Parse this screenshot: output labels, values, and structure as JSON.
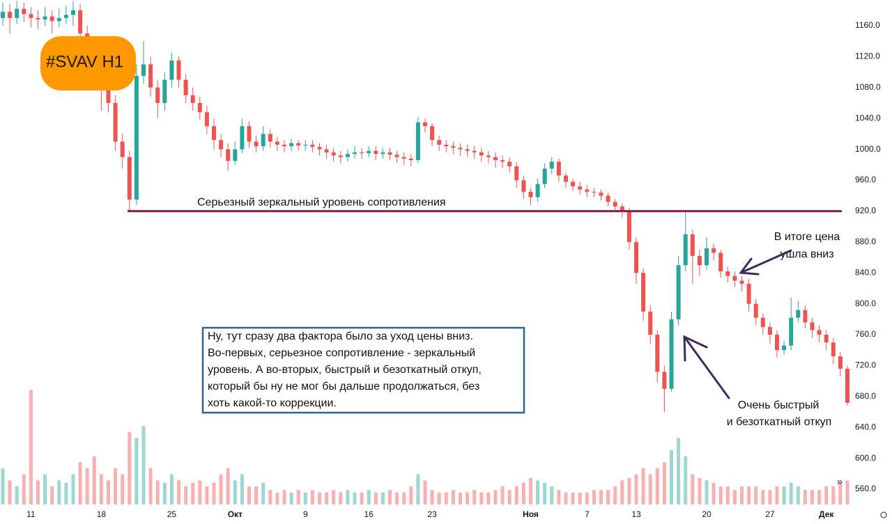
{
  "chart_data": {
    "type": "candlestick",
    "categories": [
      null,
      null,
      null,
      null,
      "11",
      null,
      null,
      null,
      null,
      null,
      null,
      null,
      null,
      null,
      "18",
      null,
      null,
      null,
      null,
      null,
      null,
      null,
      null,
      null,
      "25",
      null,
      null,
      null,
      null,
      null,
      null,
      null,
      null,
      "Окт",
      null,
      null,
      null,
      null,
      null,
      null,
      null,
      null,
      null,
      "9",
      null,
      null,
      null,
      null,
      null,
      null,
      null,
      null,
      "16",
      null,
      null,
      null,
      null,
      null,
      null,
      null,
      null,
      "23",
      null,
      null,
      null,
      null,
      null,
      null,
      null,
      null,
      null,
      null,
      null,
      null,
      null,
      "Ноя",
      null,
      null,
      null,
      null,
      null,
      null,
      null,
      "7",
      null,
      null,
      null,
      null,
      null,
      null,
      "13",
      null,
      null,
      null,
      null,
      null,
      null,
      null,
      null,
      null,
      "20",
      null,
      null,
      null,
      null,
      null,
      null,
      null,
      null,
      "27",
      null,
      null,
      null,
      null,
      null,
      null,
      null,
      "Дек",
      null,
      null,
      null
    ],
    "open": [
      1170,
      1178,
      1170,
      1182,
      1175,
      1170,
      1168,
      1172,
      1166,
      1170,
      1174,
      1180,
      1150,
      1120,
      1095,
      1080,
      1060,
      1010,
      990,
      935,
      1095,
      1110,
      1080,
      1060,
      1090,
      1115,
      1090,
      1070,
      1060,
      1048,
      1030,
      1012,
      1000,
      985,
      1000,
      1030,
      1010,
      1004,
      1020,
      1010,
      1006,
      1004,
      1008,
      1005,
      1006,
      1003,
      1000,
      996,
      992,
      990,
      994,
      996,
      995,
      998,
      994,
      996,
      993,
      990,
      988,
      986,
      1035,
      1030,
      1012,
      1006,
      1004,
      1002,
      1000,
      998,
      996,
      992,
      990,
      986,
      984,
      978,
      960,
      945,
      938,
      955,
      975,
      984,
      966,
      958,
      952,
      948,
      945,
      944,
      940,
      932,
      926,
      920,
      880,
      840,
      790,
      760,
      712,
      690,
      780,
      850,
      890,
      862,
      850,
      872,
      866,
      842,
      836,
      830,
      826,
      800,
      782,
      770,
      760,
      740,
      746,
      782,
      792,
      776,
      766,
      760,
      750,
      732,
      716
    ],
    "high": [
      1190,
      1188,
      1192,
      1190,
      1184,
      1180,
      1184,
      1180,
      1182,
      1186,
      1192,
      1188,
      1160,
      1130,
      1105,
      1090,
      1070,
      1020,
      998,
      1110,
      1140,
      1120,
      1090,
      1100,
      1125,
      1120,
      1098,
      1080,
      1068,
      1056,
      1040,
      1020,
      1008,
      1010,
      1040,
      1036,
      1018,
      1030,
      1026,
      1016,
      1012,
      1014,
      1012,
      1012,
      1012,
      1008,
      1006,
      1002,
      998,
      1000,
      1004,
      1002,
      1004,
      1004,
      1002,
      1002,
      998,
      996,
      994,
      1042,
      1040,
      1034,
      1018,
      1012,
      1010,
      1008,
      1006,
      1004,
      1002,
      998,
      996,
      992,
      990,
      984,
      966,
      950,
      962,
      982,
      990,
      988,
      970,
      962,
      958,
      954,
      950,
      948,
      944,
      936,
      930,
      924,
      886,
      846,
      798,
      766,
      720,
      790,
      862,
      920,
      896,
      870,
      886,
      878,
      870,
      848,
      842,
      836,
      832,
      806,
      788,
      776,
      766,
      752,
      808,
      804,
      798,
      782,
      772,
      766,
      756,
      738,
      720
    ],
    "low": [
      1160,
      1150,
      1162,
      1165,
      1158,
      1156,
      1160,
      1150,
      1158,
      1162,
      1160,
      1140,
      1108,
      1080,
      1050,
      1048,
      998,
      975,
      920,
      928,
      1085,
      1068,
      1040,
      1050,
      1080,
      1080,
      1060,
      1050,
      1038,
      1020,
      1000,
      990,
      972,
      980,
      995,
      1002,
      996,
      998,
      1002,
      998,
      996,
      998,
      998,
      998,
      996,
      992,
      988,
      984,
      982,
      984,
      988,
      988,
      990,
      986,
      988,
      986,
      982,
      980,
      978,
      982,
      1022,
      1004,
      998,
      996,
      994,
      992,
      990,
      988,
      984,
      982,
      976,
      976,
      970,
      950,
      936,
      928,
      932,
      950,
      968,
      958,
      950,
      946,
      942,
      938,
      938,
      934,
      926,
      920,
      912,
      870,
      826,
      778,
      748,
      698,
      660,
      686,
      772,
      842,
      826,
      836,
      844,
      856,
      834,
      828,
      822,
      816,
      790,
      772,
      760,
      748,
      730,
      734,
      740,
      776,
      768,
      756,
      750,
      740,
      722,
      706,
      668
    ],
    "close": [
      1178,
      1170,
      1182,
      1175,
      1170,
      1168,
      1172,
      1166,
      1170,
      1174,
      1180,
      1150,
      1120,
      1095,
      1080,
      1060,
      1010,
      990,
      935,
      1095,
      1110,
      1080,
      1060,
      1090,
      1115,
      1090,
      1070,
      1060,
      1048,
      1030,
      1012,
      1000,
      985,
      1000,
      1030,
      1010,
      1004,
      1020,
      1010,
      1006,
      1004,
      1008,
      1005,
      1006,
      1003,
      1000,
      996,
      992,
      990,
      994,
      996,
      995,
      998,
      994,
      996,
      993,
      990,
      988,
      986,
      1035,
      1030,
      1012,
      1006,
      1004,
      1002,
      1000,
      998,
      996,
      992,
      990,
      986,
      984,
      978,
      960,
      945,
      938,
      955,
      975,
      984,
      966,
      958,
      952,
      948,
      945,
      944,
      940,
      932,
      926,
      920,
      880,
      840,
      790,
      760,
      712,
      690,
      780,
      850,
      890,
      862,
      850,
      872,
      866,
      842,
      836,
      830,
      826,
      800,
      782,
      770,
      760,
      740,
      746,
      782,
      792,
      776,
      766,
      760,
      750,
      732,
      716,
      672
    ],
    "volume": [
      30,
      20,
      15,
      25,
      95,
      20,
      25,
      15,
      20,
      18,
      25,
      35,
      30,
      40,
      25,
      20,
      30,
      25,
      60,
      55,
      65,
      30,
      20,
      18,
      25,
      20,
      15,
      18,
      20,
      15,
      18,
      25,
      30,
      20,
      25,
      15,
      15,
      18,
      12,
      10,
      12,
      10,
      12,
      10,
      12,
      10,
      10,
      12,
      10,
      12,
      10,
      10,
      12,
      10,
      10,
      12,
      10,
      10,
      15,
      25,
      20,
      12,
      10,
      10,
      12,
      10,
      10,
      12,
      10,
      10,
      12,
      15,
      12,
      15,
      18,
      22,
      20,
      18,
      15,
      12,
      10,
      10,
      10,
      10,
      12,
      12,
      12,
      15,
      20,
      22,
      25,
      30,
      25,
      30,
      35,
      45,
      55,
      40,
      25,
      22,
      20,
      18,
      15,
      15,
      12,
      15,
      15,
      15,
      12,
      12,
      15,
      15,
      18,
      15,
      12,
      12,
      12,
      15,
      15,
      18,
      20
    ],
    "colors": {
      "up": "#26a69a",
      "down": "#ef5350"
    },
    "ylim": [
      535.7,
      1193.3
    ],
    "yticks": [
      {
        "value": 1160,
        "label": "1160.0"
      },
      {
        "value": 1120,
        "label": "1120.0"
      },
      {
        "value": 1080,
        "label": "1080.0"
      },
      {
        "value": 1040,
        "label": "1040.0"
      },
      {
        "value": 1000,
        "label": "1000.0"
      },
      {
        "value": 960,
        "label": "960.0"
      },
      {
        "value": 920,
        "label": "920.0"
      },
      {
        "value": 880,
        "label": "880.0"
      },
      {
        "value": 840,
        "label": "840.0"
      },
      {
        "value": 800,
        "label": "800.0"
      },
      {
        "value": 760,
        "label": "760.0"
      },
      {
        "value": 720,
        "label": "720.0"
      },
      {
        "value": 680,
        "label": "680.0"
      },
      {
        "value": 640,
        "label": "640.0"
      },
      {
        "value": 600,
        "label": "600.0"
      },
      {
        "value": 560,
        "label": "560.0"
      }
    ],
    "level": {
      "value": 920,
      "label": "Серьезный зеркальный уровень сопротивления",
      "color": "#8b1a4a"
    },
    "tag": "#SVAV H1",
    "note": [
      "Ну, тут сразу два фактора было за уход цены вниз.",
      "Во-первых, серьезное сопротивление - зеркальный",
      "уровень. А во-вторых, быстрый и безоткатный откуп,",
      "который бы ну не мог бы дальше продолжаться, без",
      "хоть какой-то коррекции."
    ],
    "callouts": [
      [
        "В итоге цена",
        "ушла вниз"
      ],
      [
        "Очень быстрый",
        "и безоткатный откуп"
      ]
    ]
  }
}
